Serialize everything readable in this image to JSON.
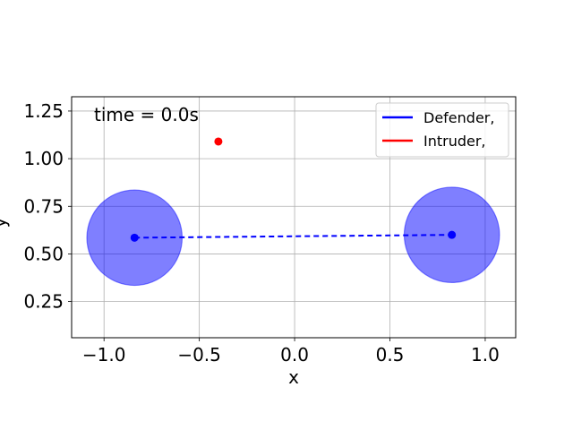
{
  "chart_data": {
    "type": "scatter",
    "time_label": "time = 0.0s",
    "xlabel": "x",
    "ylabel": "y",
    "xlim": [
      -1.17,
      1.16
    ],
    "ylim": [
      0.06,
      1.325
    ],
    "xticks": [
      -1.0,
      -0.5,
      0.0,
      0.5,
      1.0
    ],
    "xtick_labels": [
      "−1.0",
      "−0.5",
      "0.0",
      "0.5",
      "1.0"
    ],
    "yticks": [
      0.25,
      0.5,
      0.75,
      1.0,
      1.25
    ],
    "ytick_labels": [
      "0.25",
      "0.50",
      "0.75",
      "1.00",
      "1.25"
    ],
    "grid": true,
    "legend_position": "top-right",
    "legend": [
      {
        "label": "Defender,",
        "color": "#0000ff"
      },
      {
        "label": "Intruder,",
        "color": "#ff0000"
      }
    ],
    "defenders": [
      {
        "x": -0.84,
        "y": 0.585,
        "radius": 0.25
      },
      {
        "x": 0.825,
        "y": 0.6,
        "radius": 0.25
      }
    ],
    "defender_link": {
      "from": [
        -0.84,
        0.585
      ],
      "to": [
        0.825,
        0.6
      ],
      "style": "dashed",
      "color": "#0000ff"
    },
    "intruders": [
      {
        "x": -0.4,
        "y": 1.09
      }
    ],
    "colors": {
      "defender": "#0000ff",
      "defender_region": "#0000ff",
      "intruder": "#ff0000",
      "grid": "#b0b0b0"
    }
  }
}
